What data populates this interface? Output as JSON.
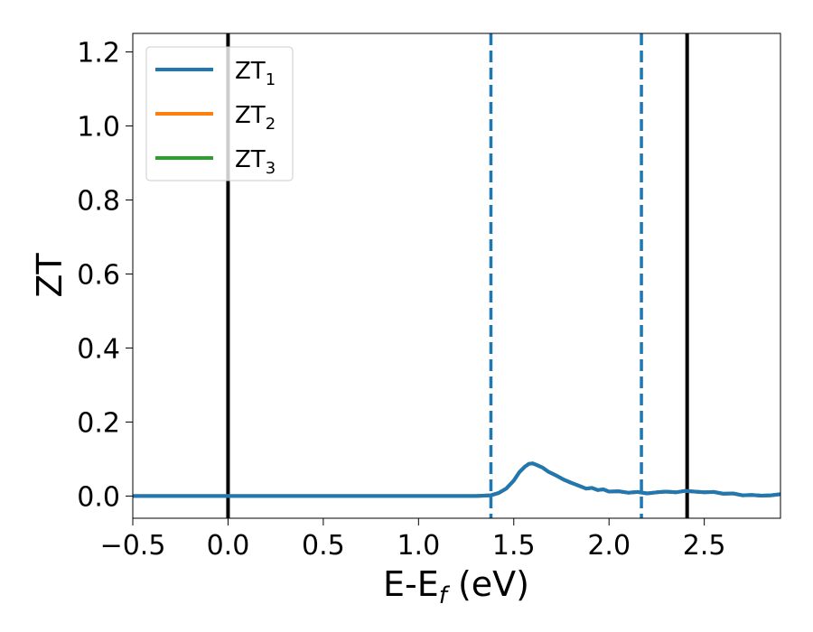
{
  "chart_data": {
    "type": "line",
    "xlabel": "E-E",
    "xlabel_sub": "f",
    "xlabel_unit": " (eV)",
    "ylabel": "ZT",
    "xlim": [
      -0.5,
      2.9
    ],
    "ylim": [
      -0.06,
      1.25
    ],
    "x_ticks": [
      -0.5,
      0.0,
      0.5,
      1.0,
      1.5,
      2.0,
      2.5
    ],
    "x_tick_labels": [
      "−0.5",
      "0.0",
      "0.5",
      "1.0",
      "1.5",
      "2.0",
      "2.5"
    ],
    "y_ticks": [
      0.0,
      0.2,
      0.4,
      0.6,
      0.8,
      1.0,
      1.2
    ],
    "y_tick_labels": [
      "0.0",
      "0.2",
      "0.4",
      "0.6",
      "0.8",
      "1.0",
      "1.2"
    ],
    "grid": false,
    "legend_position": "top-left",
    "legend": [
      {
        "base": "ZT",
        "sub": "1",
        "color": "#1f77b4"
      },
      {
        "base": "ZT",
        "sub": "2",
        "color": "#ff7f0e"
      },
      {
        "base": "ZT",
        "sub": "3",
        "color": "#2ca02c"
      }
    ],
    "vertical_lines": [
      {
        "x": 0.0,
        "style": "solid",
        "color": "#000000"
      },
      {
        "x": 1.38,
        "style": "dashed",
        "color": "#1f77b4"
      },
      {
        "x": 2.17,
        "style": "dashed",
        "color": "#1f77b4"
      },
      {
        "x": 2.41,
        "style": "solid",
        "color": "#000000"
      }
    ],
    "series": [
      {
        "color": "#2ca02c",
        "x": [
          -0.5,
          0.0,
          0.5,
          1.0,
          1.3,
          1.38,
          1.42,
          1.46,
          1.5,
          1.53,
          1.56,
          1.58,
          1.6,
          1.62,
          1.65,
          1.68,
          1.72,
          1.76,
          1.8,
          1.84,
          1.88,
          1.91,
          1.94,
          1.97,
          2.0,
          2.05,
          2.1,
          2.15,
          2.2,
          2.25,
          2.3,
          2.35,
          2.4,
          2.45,
          2.5,
          2.55,
          2.6,
          2.65,
          2.7,
          2.75,
          2.8,
          2.85,
          2.9
        ],
        "y": [
          0.0,
          0.0,
          0.0,
          0.0,
          0.0,
          0.002,
          0.008,
          0.02,
          0.042,
          0.065,
          0.08,
          0.087,
          0.088,
          0.084,
          0.077,
          0.066,
          0.056,
          0.045,
          0.036,
          0.028,
          0.02,
          0.022,
          0.016,
          0.018,
          0.012,
          0.013,
          0.009,
          0.011,
          0.007,
          0.01,
          0.012,
          0.01,
          0.014,
          0.012,
          0.01,
          0.011,
          0.006,
          0.007,
          0.002,
          0.003,
          0.001,
          0.002,
          0.005
        ]
      },
      {
        "color": "#ff7f0e",
        "x": [
          -0.5,
          0.0,
          0.5,
          1.0,
          1.3,
          1.38,
          1.42,
          1.46,
          1.5,
          1.53,
          1.56,
          1.58,
          1.6,
          1.62,
          1.65,
          1.68,
          1.72,
          1.76,
          1.8,
          1.84,
          1.88,
          1.91,
          1.94,
          1.97,
          2.0,
          2.05,
          2.1,
          2.15,
          2.2,
          2.25,
          2.3,
          2.35,
          2.4,
          2.45,
          2.5,
          2.55,
          2.6,
          2.65,
          2.7,
          2.75,
          2.8,
          2.85,
          2.9
        ],
        "y": [
          0.0,
          0.0,
          0.0,
          0.0,
          0.0,
          0.002,
          0.008,
          0.02,
          0.042,
          0.065,
          0.08,
          0.087,
          0.088,
          0.084,
          0.077,
          0.066,
          0.056,
          0.045,
          0.036,
          0.028,
          0.02,
          0.022,
          0.016,
          0.018,
          0.012,
          0.013,
          0.009,
          0.011,
          0.007,
          0.01,
          0.012,
          0.01,
          0.014,
          0.012,
          0.01,
          0.011,
          0.006,
          0.007,
          0.002,
          0.003,
          0.001,
          0.002,
          0.005
        ]
      },
      {
        "color": "#1f77b4",
        "x": [
          -0.5,
          0.0,
          0.5,
          1.0,
          1.3,
          1.38,
          1.42,
          1.46,
          1.5,
          1.53,
          1.56,
          1.58,
          1.6,
          1.62,
          1.65,
          1.68,
          1.72,
          1.76,
          1.8,
          1.84,
          1.88,
          1.91,
          1.94,
          1.97,
          2.0,
          2.05,
          2.1,
          2.15,
          2.2,
          2.25,
          2.3,
          2.35,
          2.4,
          2.45,
          2.5,
          2.55,
          2.6,
          2.65,
          2.7,
          2.75,
          2.8,
          2.85,
          2.9
        ],
        "y": [
          0.0,
          0.0,
          0.0,
          0.0,
          0.0,
          0.002,
          0.008,
          0.02,
          0.042,
          0.065,
          0.08,
          0.087,
          0.088,
          0.084,
          0.077,
          0.066,
          0.056,
          0.045,
          0.036,
          0.028,
          0.02,
          0.022,
          0.016,
          0.018,
          0.012,
          0.013,
          0.009,
          0.011,
          0.007,
          0.01,
          0.012,
          0.01,
          0.014,
          0.012,
          0.01,
          0.011,
          0.006,
          0.007,
          0.002,
          0.003,
          0.001,
          0.002,
          0.005
        ]
      }
    ]
  }
}
